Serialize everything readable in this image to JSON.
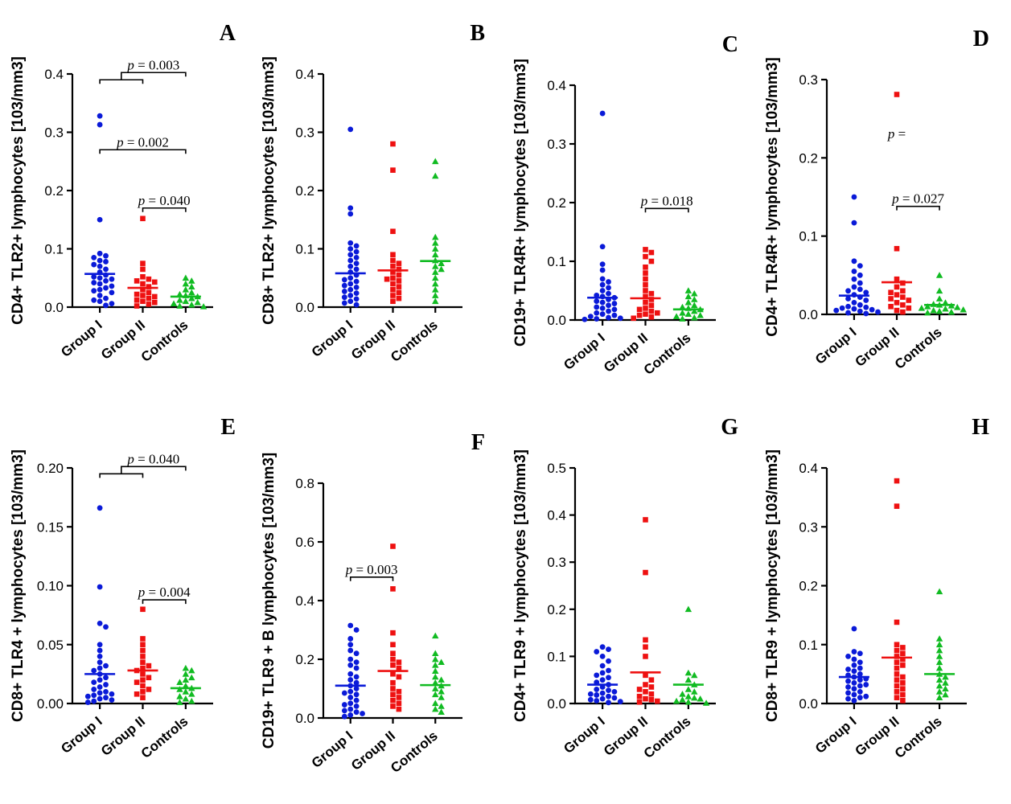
{
  "colors": {
    "group1": "#0a1ad8",
    "group2": "#ee1111",
    "controls": "#11bb22"
  },
  "chart_data": [
    {
      "panel": "A",
      "type": "scatter",
      "ylabel": "CD4+ TLR2+ lymphocytes [103/mm3]",
      "ylim": [
        0,
        0.4
      ],
      "yticks": [
        "0.0",
        "0.1",
        "0.2",
        "0.3",
        "0.4"
      ],
      "categories": [
        "Group I",
        "Group II",
        "Controls"
      ],
      "series": [
        {
          "name": "Group I",
          "mean": 0.057,
          "values": [
            0.328,
            0.313,
            0.15,
            0.092,
            0.088,
            0.085,
            0.08,
            0.078,
            0.073,
            0.07,
            0.065,
            0.06,
            0.055,
            0.052,
            0.05,
            0.048,
            0.045,
            0.042,
            0.04,
            0.036,
            0.033,
            0.03,
            0.028,
            0.025,
            0.02,
            0.015,
            0.012,
            0.01,
            0.006,
            0.003
          ]
        },
        {
          "name": "Group II",
          "mean": 0.033,
          "values": [
            0.152,
            0.075,
            0.065,
            0.052,
            0.048,
            0.045,
            0.043,
            0.04,
            0.035,
            0.03,
            0.025,
            0.022,
            0.02,
            0.018,
            0.015,
            0.012,
            0.01,
            0.008,
            0.005,
            0.002
          ]
        },
        {
          "name": "Controls",
          "mean": 0.018,
          "values": [
            0.05,
            0.045,
            0.04,
            0.035,
            0.03,
            0.025,
            0.022,
            0.02,
            0.018,
            0.015,
            0.012,
            0.01,
            0.008,
            0.006,
            0.004,
            0.002,
            0.001
          ]
        }
      ],
      "annotations": [
        {
          "text": "p = 0.003",
          "type": "nested",
          "y": 0.39
        },
        {
          "text": "p = 0.002",
          "from": 0,
          "to": 2,
          "y": 0.27
        },
        {
          "text": "p = 0.040",
          "from": 1,
          "to": 2,
          "y": 0.17
        }
      ]
    },
    {
      "panel": "B",
      "type": "scatter",
      "ylabel": "CD8+ TLR2+ lymphocytes [103/mm3]",
      "ylim": [
        0,
        0.4
      ],
      "yticks": [
        "0.0",
        "0.1",
        "0.2",
        "0.3",
        "0.4"
      ],
      "categories": [
        "Group I",
        "Group II",
        "Controls"
      ],
      "series": [
        {
          "name": "Group I",
          "mean": 0.058,
          "values": [
            0.305,
            0.17,
            0.16,
            0.11,
            0.105,
            0.1,
            0.095,
            0.09,
            0.085,
            0.08,
            0.075,
            0.07,
            0.065,
            0.06,
            0.055,
            0.05,
            0.047,
            0.044,
            0.04,
            0.037,
            0.034,
            0.03,
            0.027,
            0.024,
            0.02,
            0.017,
            0.014,
            0.01,
            0.007,
            0.004
          ]
        },
        {
          "name": "Group II",
          "mean": 0.063,
          "values": [
            0.28,
            0.235,
            0.13,
            0.09,
            0.08,
            0.075,
            0.07,
            0.065,
            0.06,
            0.055,
            0.05,
            0.048,
            0.045,
            0.04,
            0.035,
            0.03,
            0.025,
            0.02,
            0.015,
            0.01
          ]
        },
        {
          "name": "Controls",
          "mean": 0.079,
          "values": [
            0.25,
            0.225,
            0.12,
            0.11,
            0.1,
            0.09,
            0.08,
            0.075,
            0.07,
            0.065,
            0.06,
            0.05,
            0.04,
            0.03,
            0.02,
            0.01
          ]
        }
      ],
      "annotations": []
    },
    {
      "panel": "C",
      "type": "scatter",
      "ylabel": "CD19+ TLR4R+ lymphocytes [103/mm3]",
      "ylim": [
        0,
        0.4
      ],
      "yticks": [
        "0.0",
        "0.1",
        "0.2",
        "0.3",
        "0.4"
      ],
      "categories": [
        "Group I",
        "Group II",
        "Controls"
      ],
      "series": [
        {
          "name": "Group I",
          "mean": 0.038,
          "values": [
            0.352,
            0.125,
            0.095,
            0.085,
            0.07,
            0.065,
            0.06,
            0.055,
            0.05,
            0.045,
            0.042,
            0.04,
            0.038,
            0.035,
            0.032,
            0.03,
            0.028,
            0.025,
            0.022,
            0.02,
            0.018,
            0.015,
            0.012,
            0.01,
            0.008,
            0.006,
            0.004,
            0.003,
            0.002,
            0.001
          ]
        },
        {
          "name": "Group II",
          "mean": 0.037,
          "values": [
            0.12,
            0.115,
            0.108,
            0.1,
            0.09,
            0.08,
            0.07,
            0.06,
            0.05,
            0.045,
            0.04,
            0.035,
            0.03,
            0.025,
            0.02,
            0.018,
            0.015,
            0.012,
            0.01,
            0.008,
            0.005,
            0.003
          ]
        },
        {
          "name": "Controls",
          "mean": 0.018,
          "values": [
            0.05,
            0.045,
            0.04,
            0.035,
            0.03,
            0.025,
            0.022,
            0.02,
            0.018,
            0.015,
            0.012,
            0.01,
            0.008,
            0.006,
            0.004,
            0.002
          ]
        }
      ],
      "annotations": [
        {
          "text": "p = 0.018",
          "from": 1,
          "to": 2,
          "y": 0.19
        }
      ]
    },
    {
      "panel": "D",
      "type": "scatter",
      "ylabel": "CD4+ TLR4R+ lymphocytes [103/mm3]",
      "ylim": [
        0,
        0.3
      ],
      "yticks": [
        "0.0",
        "0.1",
        "0.2",
        "0.3"
      ],
      "categories": [
        "Group I",
        "Group II",
        "Controls"
      ],
      "series": [
        {
          "name": "Group I",
          "mean": 0.024,
          "values": [
            0.15,
            0.117,
            0.068,
            0.062,
            0.055,
            0.05,
            0.045,
            0.04,
            0.035,
            0.032,
            0.03,
            0.028,
            0.025,
            0.022,
            0.02,
            0.018,
            0.015,
            0.012,
            0.01,
            0.009,
            0.008,
            0.007,
            0.006,
            0.005,
            0.004,
            0.003,
            0.002,
            0.001
          ]
        },
        {
          "name": "Group II",
          "mean": 0.041,
          "values": [
            0.281,
            0.084,
            0.045,
            0.04,
            0.035,
            0.03,
            0.028,
            0.025,
            0.022,
            0.02,
            0.018,
            0.015,
            0.012,
            0.01,
            0.008,
            0.005,
            0.003
          ]
        },
        {
          "name": "Controls",
          "mean": 0.012,
          "values": [
            0.05,
            0.03,
            0.02,
            0.015,
            0.013,
            0.012,
            0.011,
            0.01,
            0.009,
            0.008,
            0.007,
            0.006,
            0.005,
            0.004,
            0.003,
            0.002
          ]
        }
      ],
      "annotations": [
        {
          "text": "p =",
          "type": "label",
          "x": 0.5,
          "y": 0.225
        },
        {
          "text": "p = 0.027",
          "from": 1,
          "to": 2,
          "y": 0.138
        }
      ]
    },
    {
      "panel": "E",
      "type": "scatter",
      "ylabel": "CD8+ TLR4 + lymphocytes [103/mm3]",
      "ylim": [
        0,
        0.2
      ],
      "yticks": [
        "0.00",
        "0.05",
        "0.10",
        "0.15",
        "0.20"
      ],
      "categories": [
        "Group I",
        "Group II",
        "Controls"
      ],
      "series": [
        {
          "name": "Group I",
          "mean": 0.025,
          "values": [
            0.166,
            0.099,
            0.068,
            0.065,
            0.05,
            0.045,
            0.04,
            0.035,
            0.032,
            0.03,
            0.028,
            0.025,
            0.022,
            0.02,
            0.018,
            0.016,
            0.014,
            0.012,
            0.01,
            0.009,
            0.008,
            0.007,
            0.006,
            0.005,
            0.004,
            0.003,
            0.002,
            0.001
          ]
        },
        {
          "name": "Group II",
          "mean": 0.028,
          "values": [
            0.08,
            0.055,
            0.05,
            0.045,
            0.04,
            0.035,
            0.032,
            0.03,
            0.028,
            0.025,
            0.022,
            0.02,
            0.018,
            0.015,
            0.012,
            0.01,
            0.008,
            0.005
          ]
        },
        {
          "name": "Controls",
          "mean": 0.013,
          "values": [
            0.03,
            0.028,
            0.025,
            0.022,
            0.02,
            0.018,
            0.015,
            0.013,
            0.012,
            0.01,
            0.008,
            0.006,
            0.004,
            0.002,
            0.001
          ]
        }
      ],
      "annotations": [
        {
          "text": "p = 0.040",
          "type": "nested",
          "y": 0.195
        },
        {
          "text": "p = 0.004",
          "from": 1,
          "to": 2,
          "y": 0.088
        }
      ]
    },
    {
      "panel": "F",
      "type": "scatter",
      "ylabel": "CD19+ TLR9 + B lymphocytes [103/mm3]",
      "ylim": [
        0,
        0.8
      ],
      "yticks": [
        "0.0",
        "0.2",
        "0.4",
        "0.6",
        "0.8"
      ],
      "categories": [
        "Group I",
        "Group II",
        "Controls"
      ],
      "series": [
        {
          "name": "Group I",
          "mean": 0.11,
          "values": [
            0.315,
            0.3,
            0.27,
            0.25,
            0.23,
            0.22,
            0.2,
            0.19,
            0.18,
            0.17,
            0.15,
            0.14,
            0.13,
            0.12,
            0.11,
            0.1,
            0.09,
            0.085,
            0.08,
            0.07,
            0.06,
            0.05,
            0.045,
            0.04,
            0.03,
            0.025,
            0.02,
            0.015,
            0.01,
            0.005
          ]
        },
        {
          "name": "Group II",
          "mean": 0.16,
          "values": [
            0.585,
            0.44,
            0.29,
            0.25,
            0.22,
            0.2,
            0.19,
            0.18,
            0.17,
            0.15,
            0.14,
            0.12,
            0.1,
            0.09,
            0.08,
            0.07,
            0.06,
            0.05,
            0.04,
            0.03
          ]
        },
        {
          "name": "Controls",
          "mean": 0.112,
          "values": [
            0.28,
            0.22,
            0.2,
            0.19,
            0.18,
            0.16,
            0.14,
            0.13,
            0.12,
            0.11,
            0.1,
            0.09,
            0.08,
            0.07,
            0.05,
            0.04,
            0.03,
            0.02
          ]
        }
      ],
      "annotations": [
        {
          "text": "p = 0.003",
          "from": 0,
          "to": 1,
          "y": 0.48
        }
      ]
    },
    {
      "panel": "G",
      "type": "scatter",
      "ylabel": "CD4+ TLR9 + lymphocytes [103/mm3]",
      "ylim": [
        0,
        0.5
      ],
      "yticks": [
        "0.0",
        "0.1",
        "0.2",
        "0.3",
        "0.4",
        "0.5"
      ],
      "categories": [
        "Group I",
        "Group II",
        "Controls"
      ],
      "series": [
        {
          "name": "Group I",
          "mean": 0.04,
          "values": [
            0.12,
            0.115,
            0.11,
            0.1,
            0.09,
            0.08,
            0.07,
            0.065,
            0.06,
            0.055,
            0.05,
            0.045,
            0.04,
            0.035,
            0.03,
            0.028,
            0.025,
            0.022,
            0.02,
            0.018,
            0.015,
            0.012,
            0.01,
            0.008,
            0.006,
            0.004,
            0.002
          ]
        },
        {
          "name": "Group II",
          "mean": 0.066,
          "values": [
            0.39,
            0.278,
            0.135,
            0.12,
            0.1,
            0.06,
            0.05,
            0.04,
            0.035,
            0.03,
            0.025,
            0.02,
            0.015,
            0.01,
            0.008,
            0.005,
            0.003
          ]
        },
        {
          "name": "Controls",
          "mean": 0.04,
          "values": [
            0.2,
            0.065,
            0.06,
            0.05,
            0.04,
            0.03,
            0.025,
            0.02,
            0.015,
            0.012,
            0.01,
            0.008,
            0.005,
            0.003,
            0.001
          ]
        }
      ],
      "annotations": []
    },
    {
      "panel": "H",
      "type": "scatter",
      "ylabel": "CD8+ TLR9 + lymphocytes [103/mm3]",
      "ylim": [
        0,
        0.4
      ],
      "yticks": [
        "0.0",
        "0.1",
        "0.2",
        "0.3",
        "0.4"
      ],
      "categories": [
        "Group I",
        "Group II",
        "Controls"
      ],
      "series": [
        {
          "name": "Group I",
          "mean": 0.045,
          "values": [
            0.127,
            0.088,
            0.085,
            0.08,
            0.075,
            0.07,
            0.065,
            0.06,
            0.058,
            0.055,
            0.05,
            0.048,
            0.045,
            0.042,
            0.04,
            0.038,
            0.035,
            0.032,
            0.03,
            0.028,
            0.025,
            0.02,
            0.018,
            0.015,
            0.012,
            0.01,
            0.008,
            0.005
          ]
        },
        {
          "name": "Group II",
          "mean": 0.078,
          "values": [
            0.378,
            0.335,
            0.138,
            0.1,
            0.095,
            0.09,
            0.085,
            0.08,
            0.075,
            0.07,
            0.065,
            0.06,
            0.05,
            0.045,
            0.04,
            0.035,
            0.03,
            0.025,
            0.02,
            0.015,
            0.01,
            0.005
          ]
        },
        {
          "name": "Controls",
          "mean": 0.05,
          "values": [
            0.19,
            0.11,
            0.1,
            0.09,
            0.08,
            0.07,
            0.06,
            0.05,
            0.045,
            0.04,
            0.035,
            0.03,
            0.025,
            0.02,
            0.015,
            0.01
          ]
        }
      ],
      "annotations": []
    }
  ]
}
